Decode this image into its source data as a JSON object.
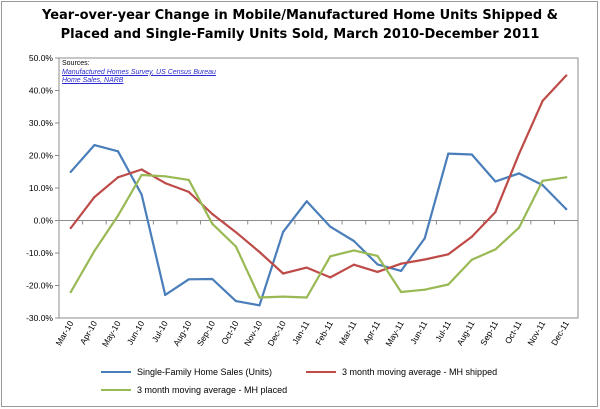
{
  "chart_data": {
    "type": "line",
    "title": "Year-over-year Change in Mobile/Manufactured Home Units Shipped &\nPlaced and Single-Family Units Sold, March 2010-December 2011",
    "sources": {
      "label": "Sources:",
      "links": [
        "Manufactured Homes Survey, US Census Bureau",
        "Home Sales, NARB"
      ]
    },
    "categories": [
      "Mar-10",
      "Apr-10",
      "May-10",
      "Jun-10",
      "Jul-10",
      "Aug-10",
      "Sep-10",
      "Oct-10",
      "Nov-10",
      "Dec-10",
      "Jan-11",
      "Feb-11",
      "Mar-11",
      "Apr-11",
      "May-11",
      "Jun-11",
      "Jul-11",
      "Aug-11",
      "Sep-11",
      "Oct-11",
      "Nov-11",
      "Dec-11"
    ],
    "y_ticks": [
      "50.0%",
      "40.0%",
      "30.0%",
      "20.0%",
      "10.0%",
      "0.0%",
      "-10.0%",
      "-20.0%",
      "-30.0%"
    ],
    "ylim": [
      -30,
      50
    ],
    "grid": false,
    "legend_position": "bottom",
    "series": [
      {
        "name": "Single-Family Home Sales (Units)",
        "color": "#4a7ebb",
        "values": [
          15.0,
          23.2,
          21.3,
          8.0,
          -22.9,
          -18.1,
          -18.0,
          -24.8,
          -26.1,
          -3.5,
          5.9,
          -1.9,
          -6.3,
          -13.5,
          -15.5,
          -5.5,
          20.6,
          20.3,
          12.0,
          14.5,
          10.9,
          3.5
        ]
      },
      {
        "name": "3 month moving average - MH shipped",
        "color": "#be4b48",
        "values": [
          -2.3,
          7.2,
          13.3,
          15.7,
          11.5,
          8.8,
          2.0,
          -3.6,
          -9.7,
          -16.3,
          -14.5,
          -17.5,
          -13.6,
          -15.8,
          -13.3,
          -12.0,
          -10.4,
          -5.0,
          2.6,
          20.5,
          36.8,
          44.6
        ]
      },
      {
        "name": "3 month moving average - MH placed",
        "color": "#98b954",
        "values": [
          -22.0,
          -9.4,
          1.5,
          14.0,
          13.6,
          12.5,
          -1.0,
          -8.0,
          -23.7,
          -23.4,
          -23.7,
          -11.0,
          -9.2,
          -10.9,
          -22.0,
          -21.3,
          -19.7,
          -12.1,
          -8.9,
          -2.2,
          12.2,
          13.3
        ]
      }
    ]
  }
}
